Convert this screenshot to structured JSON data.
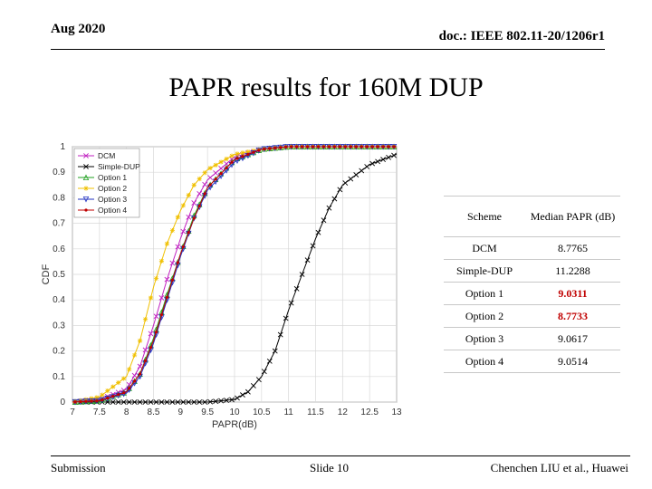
{
  "header": {
    "date": "Aug 2020",
    "doc_id": "doc.: IEEE 802.11-20/1206r1"
  },
  "slide": {
    "title": "PAPR results for 160M DUP"
  },
  "table": {
    "headers": [
      "Scheme",
      "Median PAPR (dB)"
    ],
    "rows": [
      {
        "scheme": "DCM",
        "median": "8.7765",
        "highlight": false
      },
      {
        "scheme": "Simple-DUP",
        "median": "11.2288",
        "highlight": false
      },
      {
        "scheme": "Option 1",
        "median": "9.0311",
        "highlight": true
      },
      {
        "scheme": "Option 2",
        "median": "8.7733",
        "highlight": true
      },
      {
        "scheme": "Option 3",
        "median": "9.0617",
        "highlight": false
      },
      {
        "scheme": "Option 4",
        "median": "9.0514",
        "highlight": false
      }
    ]
  },
  "footer": {
    "left": "Submission",
    "center": "Slide 10",
    "right": "Chenchen LIU et al., Huawei"
  },
  "chart_data": {
    "type": "line",
    "xlabel": "PAPR(dB)",
    "ylabel": "CDF",
    "xlim": [
      7,
      13
    ],
    "ylim": [
      0,
      1
    ],
    "xticks": [
      "7",
      "7.5",
      "8",
      "8.5",
      "9",
      "9.5",
      "10",
      "10.5",
      "11",
      "11.5",
      "12",
      "12.5",
      "13"
    ],
    "yticks": [
      "0",
      "0.1",
      "0.2",
      "0.3",
      "0.4",
      "0.5",
      "0.6",
      "0.7",
      "0.8",
      "0.9",
      "1"
    ],
    "grid": true,
    "legend": "top-left",
    "series": [
      {
        "name": "DCM",
        "color": "#c020c0",
        "marker": "x",
        "x": [
          7.0,
          7.5,
          8.0,
          8.25,
          8.5,
          8.75,
          9.0,
          9.25,
          9.5,
          10.0,
          10.5,
          11.0,
          11.5,
          13.0
        ],
        "y": [
          0.0,
          0.01,
          0.05,
          0.14,
          0.3,
          0.48,
          0.64,
          0.78,
          0.87,
          0.96,
          0.99,
          1.0,
          1.0,
          1.0
        ]
      },
      {
        "name": "Simple-DUP",
        "color": "#000000",
        "marker": "x",
        "x": [
          7.0,
          9.5,
          10.0,
          10.25,
          10.5,
          10.75,
          11.0,
          11.25,
          11.5,
          11.75,
          12.0,
          12.5,
          13.0
        ],
        "y": [
          0.0,
          0.0,
          0.01,
          0.04,
          0.1,
          0.2,
          0.36,
          0.5,
          0.64,
          0.76,
          0.85,
          0.93,
          0.97
        ]
      },
      {
        "name": "Option 1",
        "color": "#20a020",
        "marker": "triangle",
        "x": [
          7.0,
          7.5,
          8.0,
          8.25,
          8.5,
          8.75,
          9.0,
          9.25,
          9.5,
          10.0,
          10.5,
          11.0,
          11.5,
          13.0
        ],
        "y": [
          0.0,
          0.005,
          0.04,
          0.11,
          0.25,
          0.42,
          0.58,
          0.73,
          0.84,
          0.95,
          0.99,
          1.0,
          1.0,
          1.0
        ]
      },
      {
        "name": "Option 2",
        "color": "#f0c000",
        "marker": "star",
        "x": [
          7.0,
          7.5,
          8.0,
          8.25,
          8.5,
          8.75,
          9.0,
          9.25,
          9.5,
          10.0,
          10.5,
          11.0,
          11.5,
          13.0
        ],
        "y": [
          0.0,
          0.02,
          0.1,
          0.24,
          0.45,
          0.62,
          0.75,
          0.85,
          0.91,
          0.97,
          0.99,
          1.0,
          1.0,
          1.0
        ]
      },
      {
        "name": "Option 3",
        "color": "#2030c0",
        "marker": "triangle-down",
        "x": [
          7.0,
          7.5,
          8.0,
          8.25,
          8.5,
          8.75,
          9.0,
          9.25,
          9.5,
          10.0,
          10.5,
          11.0,
          11.5,
          13.0
        ],
        "y": [
          0.0,
          0.005,
          0.035,
          0.1,
          0.23,
          0.4,
          0.57,
          0.72,
          0.83,
          0.94,
          0.99,
          1.0,
          1.0,
          1.0
        ]
      },
      {
        "name": "Option 4",
        "color": "#c00000",
        "marker": "dot",
        "x": [
          7.0,
          7.5,
          8.0,
          8.25,
          8.5,
          8.75,
          9.0,
          9.25,
          9.5,
          10.0,
          10.5,
          11.0,
          11.5,
          13.0
        ],
        "y": [
          0.0,
          0.005,
          0.04,
          0.11,
          0.24,
          0.41,
          0.58,
          0.72,
          0.84,
          0.95,
          0.99,
          1.0,
          1.0,
          1.0
        ]
      }
    ]
  }
}
